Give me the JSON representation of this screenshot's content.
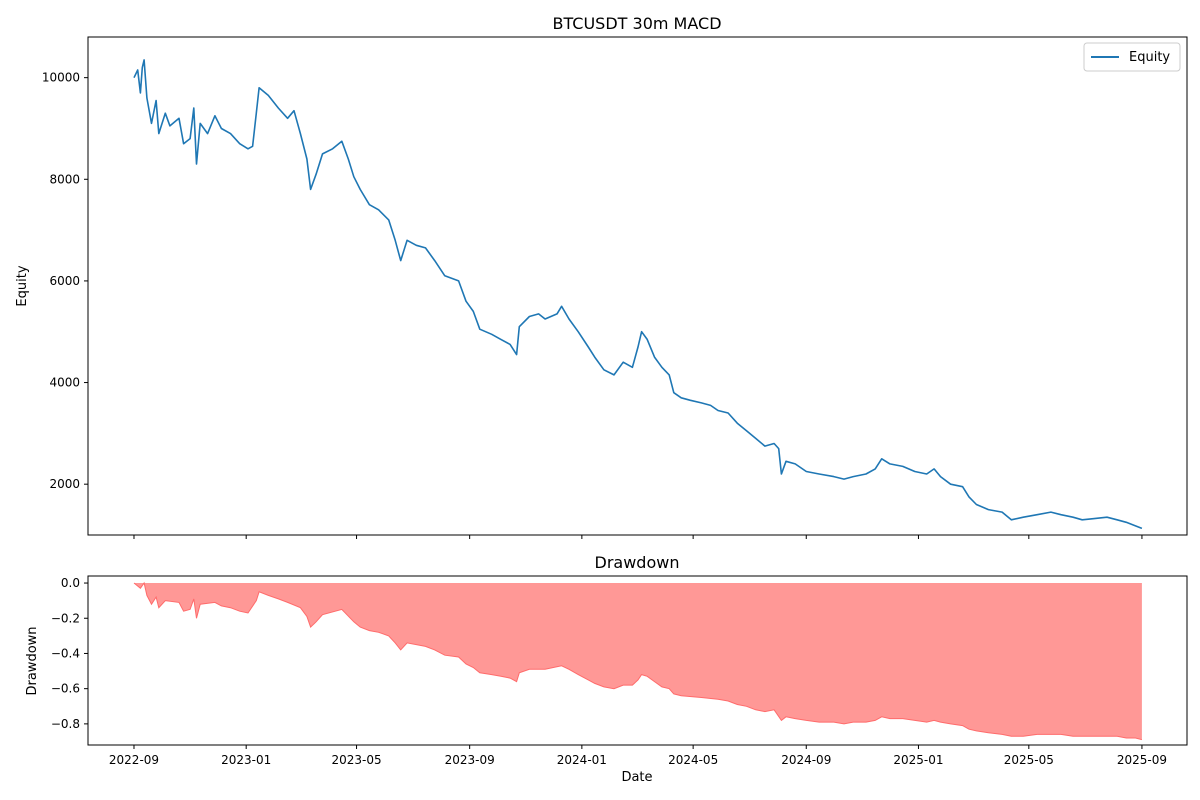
{
  "chart_data": [
    {
      "type": "line",
      "title": "BTCUSDT 30m MACD",
      "ylabel": "Equity",
      "xlabel": "",
      "xlim": [
        "2022-07-13",
        "2025-10-20"
      ],
      "ylim": [
        1000,
        10800
      ],
      "yticks": [
        2000,
        4000,
        6000,
        8000,
        10000
      ],
      "xticks": [
        "2022-09",
        "2023-01",
        "2023-05",
        "2023-09",
        "2024-01",
        "2024-05",
        "2024-09",
        "2025-01",
        "2025-05",
        "2025-09"
      ],
      "show_xtick_labels": false,
      "grid": false,
      "legend": {
        "position": "top-right",
        "entries": [
          "Equity"
        ]
      },
      "series": [
        {
          "name": "Equity",
          "color": "#1f77b4",
          "points": [
            [
              "2022-09-01",
              10000
            ],
            [
              "2022-09-05",
              10150
            ],
            [
              "2022-09-08",
              9700
            ],
            [
              "2022-09-10",
              10200
            ],
            [
              "2022-09-12",
              10350
            ],
            [
              "2022-09-15",
              9600
            ],
            [
              "2022-09-20",
              9100
            ],
            [
              "2022-09-25",
              9550
            ],
            [
              "2022-09-28",
              8900
            ],
            [
              "2022-10-05",
              9300
            ],
            [
              "2022-10-10",
              9050
            ],
            [
              "2022-10-20",
              9200
            ],
            [
              "2022-10-25",
              8700
            ],
            [
              "2022-11-01",
              8800
            ],
            [
              "2022-11-05",
              9400
            ],
            [
              "2022-11-08",
              8300
            ],
            [
              "2022-11-12",
              9100
            ],
            [
              "2022-11-20",
              8900
            ],
            [
              "2022-11-28",
              9250
            ],
            [
              "2022-12-05",
              9000
            ],
            [
              "2022-12-15",
              8900
            ],
            [
              "2022-12-25",
              8700
            ],
            [
              "2023-01-03",
              8600
            ],
            [
              "2023-01-08",
              8650
            ],
            [
              "2023-01-12",
              9300
            ],
            [
              "2023-01-15",
              9800
            ],
            [
              "2023-01-25",
              9650
            ],
            [
              "2023-02-05",
              9400
            ],
            [
              "2023-02-15",
              9200
            ],
            [
              "2023-02-22",
              9350
            ],
            [
              "2023-03-01",
              8900
            ],
            [
              "2023-03-08",
              8400
            ],
            [
              "2023-03-12",
              7800
            ],
            [
              "2023-03-18",
              8100
            ],
            [
              "2023-03-25",
              8500
            ],
            [
              "2023-04-05",
              8600
            ],
            [
              "2023-04-15",
              8750
            ],
            [
              "2023-04-22",
              8400
            ],
            [
              "2023-04-28",
              8050
            ],
            [
              "2023-05-05",
              7800
            ],
            [
              "2023-05-15",
              7500
            ],
            [
              "2023-05-25",
              7400
            ],
            [
              "2023-06-05",
              7200
            ],
            [
              "2023-06-12",
              6800
            ],
            [
              "2023-06-18",
              6400
            ],
            [
              "2023-06-25",
              6800
            ],
            [
              "2023-07-05",
              6700
            ],
            [
              "2023-07-15",
              6650
            ],
            [
              "2023-07-25",
              6400
            ],
            [
              "2023-08-05",
              6100
            ],
            [
              "2023-08-20",
              6000
            ],
            [
              "2023-08-28",
              5600
            ],
            [
              "2023-09-05",
              5400
            ],
            [
              "2023-09-12",
              5050
            ],
            [
              "2023-09-25",
              4950
            ],
            [
              "2023-10-05",
              4850
            ],
            [
              "2023-10-15",
              4750
            ],
            [
              "2023-10-22",
              4550
            ],
            [
              "2023-10-25",
              5100
            ],
            [
              "2023-11-05",
              5300
            ],
            [
              "2023-11-15",
              5350
            ],
            [
              "2023-11-22",
              5250
            ],
            [
              "2023-12-05",
              5350
            ],
            [
              "2023-12-10",
              5500
            ],
            [
              "2023-12-18",
              5250
            ],
            [
              "2023-12-28",
              5000
            ],
            [
              "2024-01-08",
              4700
            ],
            [
              "2024-01-15",
              4500
            ],
            [
              "2024-01-25",
              4250
            ],
            [
              "2024-02-05",
              4150
            ],
            [
              "2024-02-15",
              4400
            ],
            [
              "2024-02-25",
              4300
            ],
            [
              "2024-03-02",
              4700
            ],
            [
              "2024-03-06",
              5000
            ],
            [
              "2024-03-12",
              4850
            ],
            [
              "2024-03-20",
              4500
            ],
            [
              "2024-03-28",
              4300
            ],
            [
              "2024-04-05",
              4150
            ],
            [
              "2024-04-10",
              3800
            ],
            [
              "2024-04-18",
              3700
            ],
            [
              "2024-04-28",
              3650
            ],
            [
              "2024-05-10",
              3600
            ],
            [
              "2024-05-20",
              3550
            ],
            [
              "2024-05-28",
              3450
            ],
            [
              "2024-06-08",
              3400
            ],
            [
              "2024-06-18",
              3200
            ],
            [
              "2024-06-28",
              3050
            ],
            [
              "2024-07-08",
              2900
            ],
            [
              "2024-07-18",
              2750
            ],
            [
              "2024-07-28",
              2800
            ],
            [
              "2024-08-02",
              2700
            ],
            [
              "2024-08-05",
              2200
            ],
            [
              "2024-08-10",
              2450
            ],
            [
              "2024-08-20",
              2400
            ],
            [
              "2024-09-01",
              2250
            ],
            [
              "2024-09-15",
              2200
            ],
            [
              "2024-10-01",
              2150
            ],
            [
              "2024-10-12",
              2100
            ],
            [
              "2024-10-22",
              2150
            ],
            [
              "2024-11-05",
              2200
            ],
            [
              "2024-11-15",
              2300
            ],
            [
              "2024-11-22",
              2500
            ],
            [
              "2024-12-01",
              2400
            ],
            [
              "2024-12-15",
              2350
            ],
            [
              "2024-12-28",
              2250
            ],
            [
              "2025-01-10",
              2200
            ],
            [
              "2025-01-18",
              2300
            ],
            [
              "2025-01-25",
              2150
            ],
            [
              "2025-02-05",
              2000
            ],
            [
              "2025-02-18",
              1950
            ],
            [
              "2025-02-25",
              1750
            ],
            [
              "2025-03-05",
              1600
            ],
            [
              "2025-03-18",
              1500
            ],
            [
              "2025-04-02",
              1450
            ],
            [
              "2025-04-12",
              1300
            ],
            [
              "2025-04-25",
              1350
            ],
            [
              "2025-05-10",
              1400
            ],
            [
              "2025-05-25",
              1450
            ],
            [
              "2025-06-05",
              1400
            ],
            [
              "2025-06-18",
              1350
            ],
            [
              "2025-06-28",
              1300
            ],
            [
              "2025-07-10",
              1320
            ],
            [
              "2025-07-25",
              1350
            ],
            [
              "2025-08-05",
              1300
            ],
            [
              "2025-08-15",
              1250
            ],
            [
              "2025-08-25",
              1180
            ],
            [
              "2025-09-01",
              1130
            ]
          ]
        }
      ]
    },
    {
      "type": "area",
      "title": "Drawdown",
      "ylabel": "Drawdown",
      "xlabel": "Date",
      "xlim": [
        "2022-07-13",
        "2025-10-20"
      ],
      "ylim": [
        -0.92,
        0.04
      ],
      "yticks": [
        -0.8,
        -0.6,
        -0.4,
        -0.2,
        0.0
      ],
      "ytick_labels": [
        "−0.8",
        "−0.6",
        "−0.4",
        "−0.2",
        "0.0"
      ],
      "xticks": [
        "2022-09",
        "2023-01",
        "2023-05",
        "2023-09",
        "2024-01",
        "2024-05",
        "2024-09",
        "2025-01",
        "2025-05",
        "2025-09"
      ],
      "grid": false,
      "series": [
        {
          "fill_color": "#ff9896",
          "line_color": "#ff6b6b",
          "points": [
            [
              "2022-09-01",
              0.0
            ],
            [
              "2022-09-08",
              -0.03
            ],
            [
              "2022-09-12",
              0.0
            ],
            [
              "2022-09-15",
              -0.07
            ],
            [
              "2022-09-20",
              -0.12
            ],
            [
              "2022-09-25",
              -0.08
            ],
            [
              "2022-09-28",
              -0.14
            ],
            [
              "2022-10-05",
              -0.1
            ],
            [
              "2022-10-20",
              -0.11
            ],
            [
              "2022-10-25",
              -0.16
            ],
            [
              "2022-11-01",
              -0.15
            ],
            [
              "2022-11-05",
              -0.09
            ],
            [
              "2022-11-08",
              -0.2
            ],
            [
              "2022-11-12",
              -0.12
            ],
            [
              "2022-11-28",
              -0.11
            ],
            [
              "2022-12-05",
              -0.13
            ],
            [
              "2022-12-15",
              -0.14
            ],
            [
              "2022-12-25",
              -0.16
            ],
            [
              "2023-01-03",
              -0.17
            ],
            [
              "2023-01-12",
              -0.1
            ],
            [
              "2023-01-15",
              -0.05
            ],
            [
              "2023-01-25",
              -0.07
            ],
            [
              "2023-02-05",
              -0.09
            ],
            [
              "2023-02-15",
              -0.11
            ],
            [
              "2023-03-01",
              -0.14
            ],
            [
              "2023-03-08",
              -0.19
            ],
            [
              "2023-03-12",
              -0.25
            ],
            [
              "2023-03-18",
              -0.22
            ],
            [
              "2023-03-25",
              -0.18
            ],
            [
              "2023-04-15",
              -0.15
            ],
            [
              "2023-04-28",
              -0.22
            ],
            [
              "2023-05-05",
              -0.25
            ],
            [
              "2023-05-15",
              -0.27
            ],
            [
              "2023-05-25",
              -0.28
            ],
            [
              "2023-06-05",
              -0.3
            ],
            [
              "2023-06-12",
              -0.34
            ],
            [
              "2023-06-18",
              -0.38
            ],
            [
              "2023-06-25",
              -0.34
            ],
            [
              "2023-07-15",
              -0.36
            ],
            [
              "2023-07-25",
              -0.38
            ],
            [
              "2023-08-05",
              -0.41
            ],
            [
              "2023-08-20",
              -0.42
            ],
            [
              "2023-08-28",
              -0.46
            ],
            [
              "2023-09-05",
              -0.48
            ],
            [
              "2023-09-12",
              -0.51
            ],
            [
              "2023-09-25",
              -0.52
            ],
            [
              "2023-10-05",
              -0.53
            ],
            [
              "2023-10-15",
              -0.54
            ],
            [
              "2023-10-22",
              -0.56
            ],
            [
              "2023-10-25",
              -0.51
            ],
            [
              "2023-11-05",
              -0.49
            ],
            [
              "2023-11-22",
              -0.49
            ],
            [
              "2023-12-10",
              -0.47
            ],
            [
              "2023-12-18",
              -0.49
            ],
            [
              "2023-12-28",
              -0.52
            ],
            [
              "2024-01-08",
              -0.55
            ],
            [
              "2024-01-15",
              -0.57
            ],
            [
              "2024-01-25",
              -0.59
            ],
            [
              "2024-02-05",
              -0.6
            ],
            [
              "2024-02-15",
              -0.58
            ],
            [
              "2024-02-25",
              -0.58
            ],
            [
              "2024-03-02",
              -0.55
            ],
            [
              "2024-03-06",
              -0.52
            ],
            [
              "2024-03-12",
              -0.53
            ],
            [
              "2024-03-20",
              -0.56
            ],
            [
              "2024-03-28",
              -0.59
            ],
            [
              "2024-04-05",
              -0.6
            ],
            [
              "2024-04-10",
              -0.63
            ],
            [
              "2024-04-18",
              -0.64
            ],
            [
              "2024-05-10",
              -0.65
            ],
            [
              "2024-05-28",
              -0.66
            ],
            [
              "2024-06-08",
              -0.67
            ],
            [
              "2024-06-18",
              -0.69
            ],
            [
              "2024-06-28",
              -0.7
            ],
            [
              "2024-07-08",
              -0.72
            ],
            [
              "2024-07-18",
              -0.73
            ],
            [
              "2024-07-28",
              -0.72
            ],
            [
              "2024-08-05",
              -0.78
            ],
            [
              "2024-08-10",
              -0.76
            ],
            [
              "2024-08-20",
              -0.77
            ],
            [
              "2024-09-01",
              -0.78
            ],
            [
              "2024-09-15",
              -0.79
            ],
            [
              "2024-10-01",
              -0.79
            ],
            [
              "2024-10-12",
              -0.8
            ],
            [
              "2024-10-22",
              -0.79
            ],
            [
              "2024-11-05",
              -0.79
            ],
            [
              "2024-11-15",
              -0.78
            ],
            [
              "2024-11-22",
              -0.76
            ],
            [
              "2024-12-01",
              -0.77
            ],
            [
              "2024-12-15",
              -0.77
            ],
            [
              "2024-12-28",
              -0.78
            ],
            [
              "2025-01-10",
              -0.79
            ],
            [
              "2025-01-18",
              -0.78
            ],
            [
              "2025-01-25",
              -0.79
            ],
            [
              "2025-02-05",
              -0.8
            ],
            [
              "2025-02-18",
              -0.81
            ],
            [
              "2025-02-25",
              -0.83
            ],
            [
              "2025-03-05",
              -0.84
            ],
            [
              "2025-03-18",
              -0.85
            ],
            [
              "2025-04-02",
              -0.86
            ],
            [
              "2025-04-12",
              -0.87
            ],
            [
              "2025-04-25",
              -0.87
            ],
            [
              "2025-05-10",
              -0.86
            ],
            [
              "2025-05-25",
              -0.86
            ],
            [
              "2025-06-05",
              -0.86
            ],
            [
              "2025-06-18",
              -0.87
            ],
            [
              "2025-06-28",
              -0.87
            ],
            [
              "2025-07-25",
              -0.87
            ],
            [
              "2025-08-05",
              -0.87
            ],
            [
              "2025-08-15",
              -0.88
            ],
            [
              "2025-08-25",
              -0.88
            ],
            [
              "2025-09-01",
              -0.89
            ]
          ]
        }
      ]
    }
  ]
}
